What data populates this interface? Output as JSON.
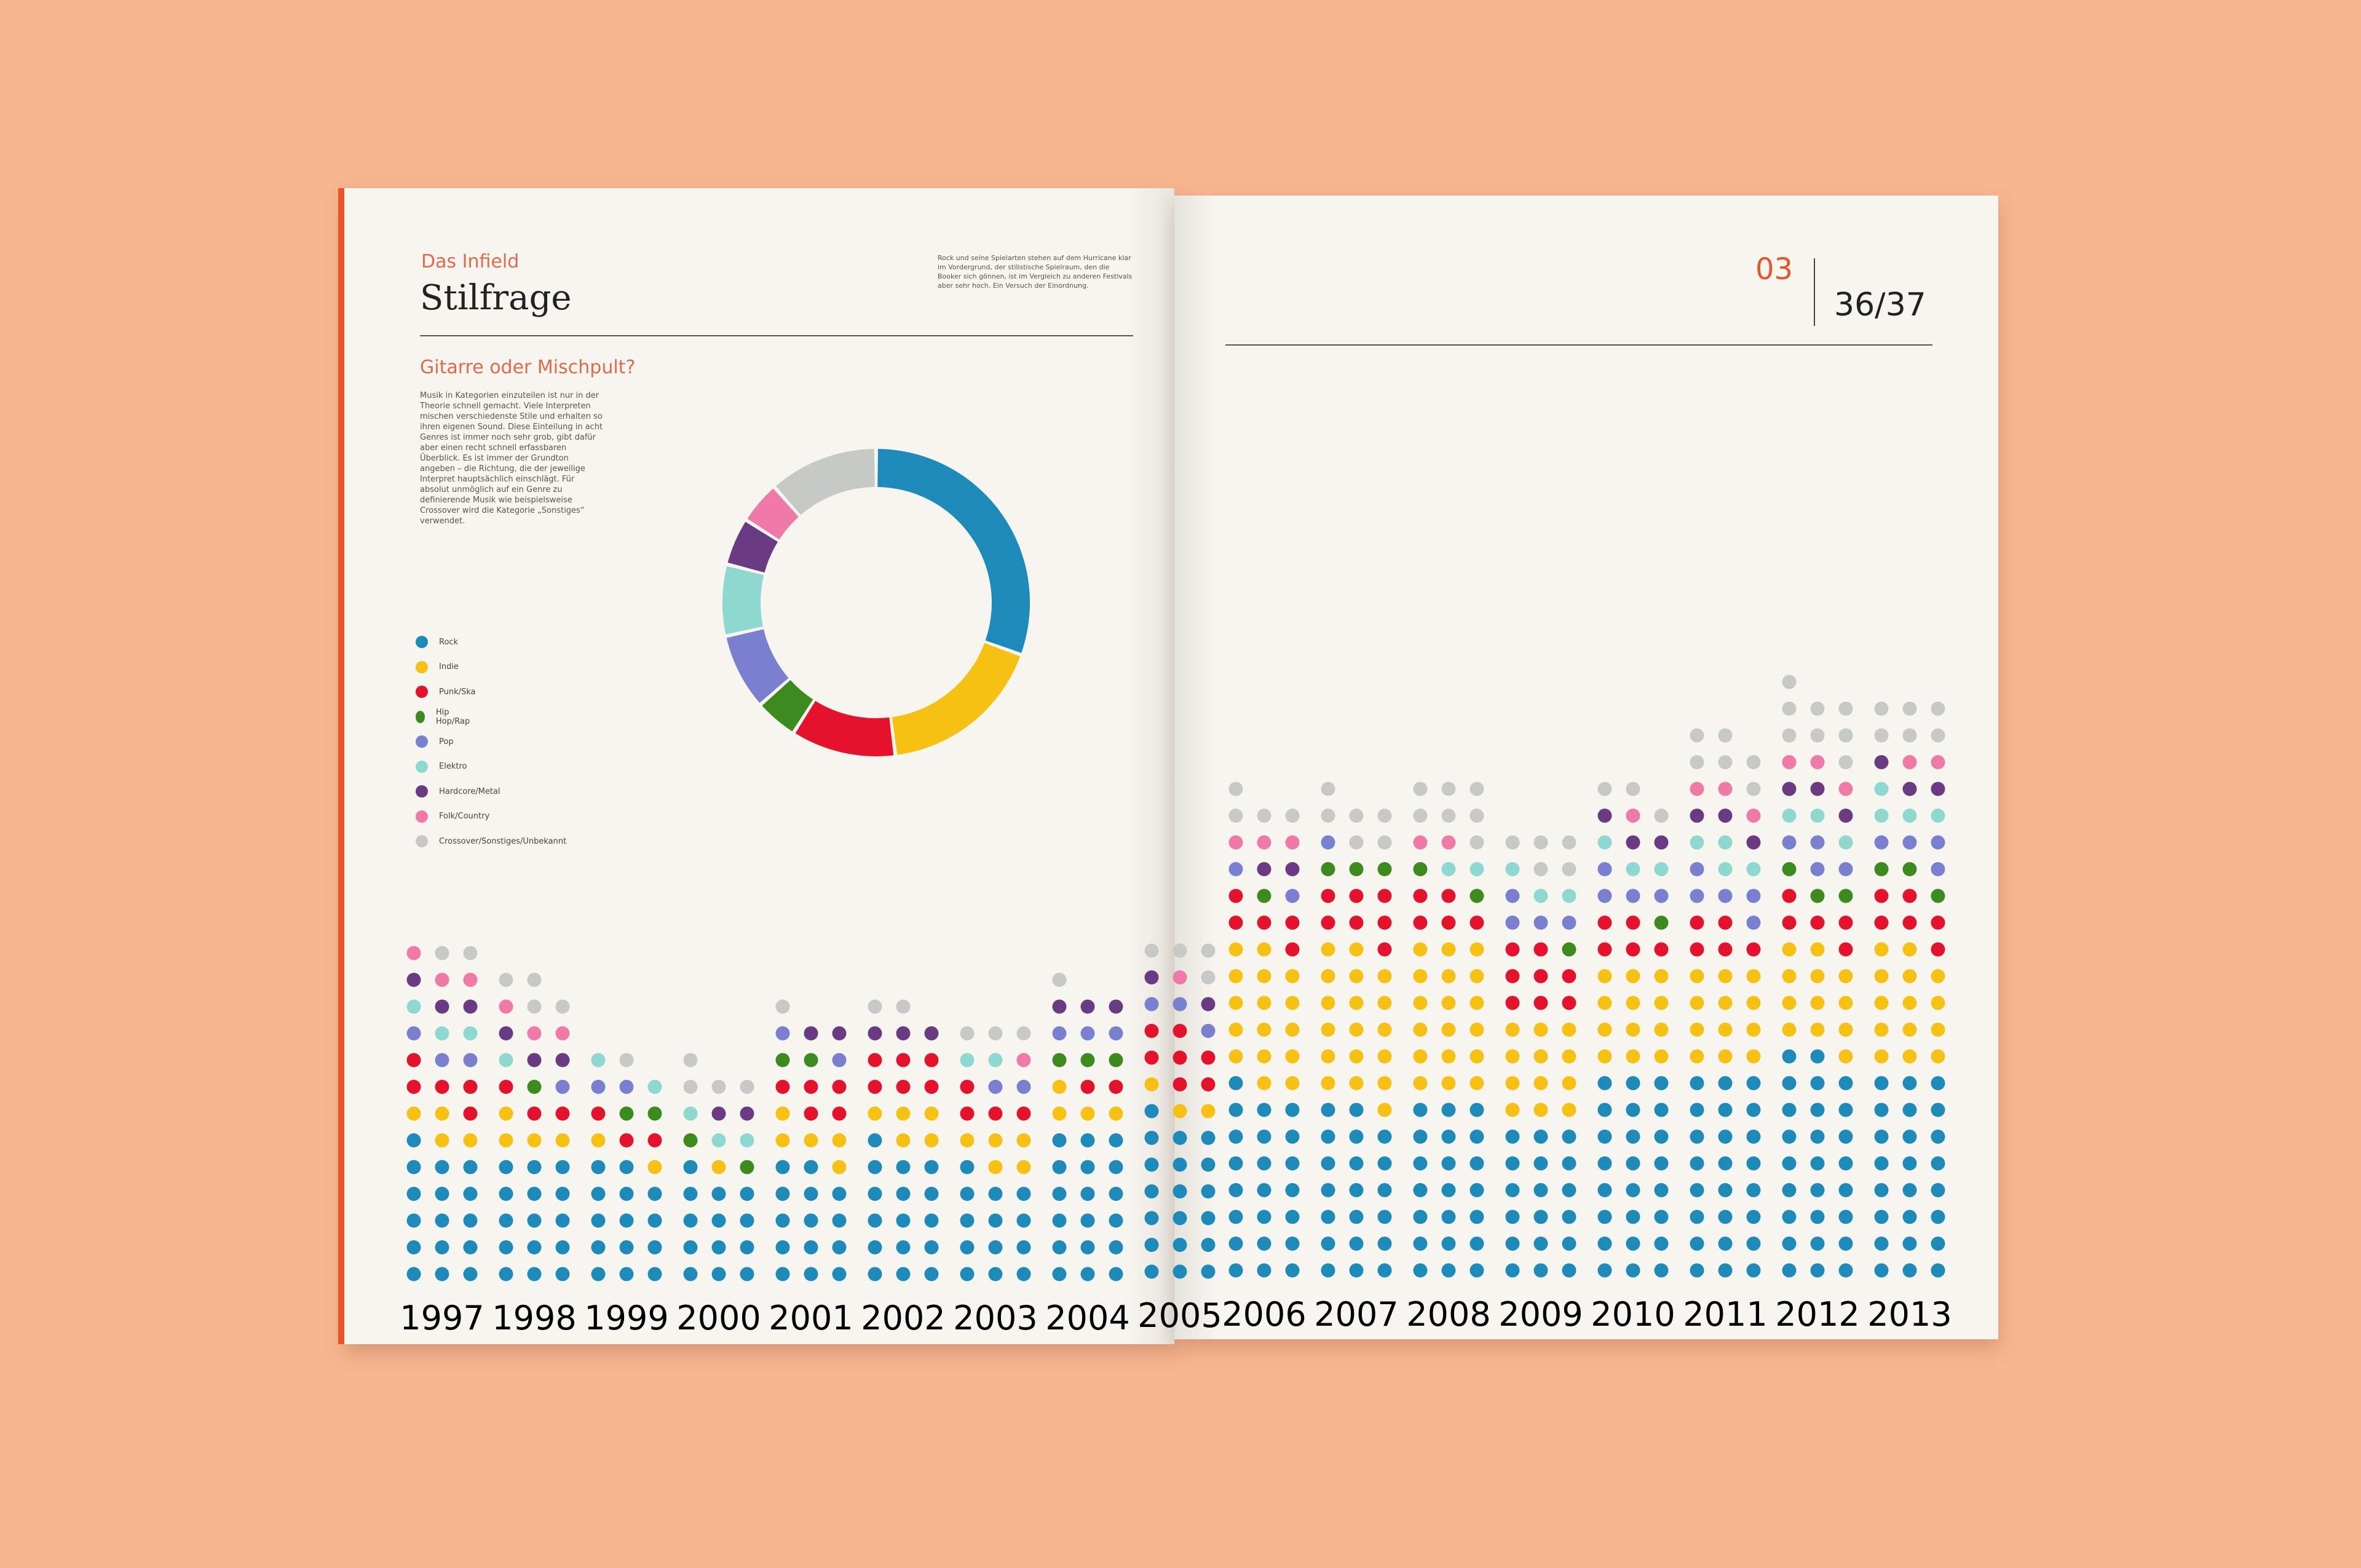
{
  "header": {
    "kicker": "Das Infield",
    "title": "Stilfrage",
    "intro": "Rock und seine Spielarten stehen auf dem Hurricane klar im Vordergrund, der stilistische Spielraum, den die Booker sich gönnen, ist im Vergleich zu anderen Festivals aber sehr hoch. Ein Versuch der Einordnung.",
    "section_number": "03",
    "page_numbers": "36/37"
  },
  "section": {
    "subheading": "Gitarre oder Mischpult?",
    "body": "Musik in Kategorien einzuteilen ist nur in der Theorie schnell gemacht. Viele Interpreten mischen verschiedenste Stile und erhalten so ihren eigenen Sound. Diese Einteilung in acht Genres ist immer noch sehr grob, gibt dafür aber einen recht schnell erfassbaren Überblick. Es ist immer der Grundton angeben – die Richtung, die der jeweilige Interpret hauptsächlich einschlägt. Für absolut unmöglich auf ein Genre zu definierende Musik wie beispielsweise Crossover wird die Kategorie „Sonstiges“ verwendet."
  },
  "chart_data": [
    {
      "type": "pie",
      "categories": [
        "Rock",
        "Indie",
        "Punk/Ska",
        "Hip Hop/Rap",
        "Pop",
        "Elektro",
        "Hardcore/Metal",
        "Folk/Country",
        "Crossover/Sonstiges/Unbekannt"
      ],
      "values": [
        30.5,
        17.5,
        11,
        4.5,
        8,
        7.5,
        5,
        4.5,
        11.5
      ],
      "colors": [
        "#1e8ab9",
        "#f7c114",
        "#e5122e",
        "#3d8a1f",
        "#7b7fcf",
        "#8fd8cf",
        "#6a3a82",
        "#ef79a7",
        "#c7c9c6"
      ],
      "legend_placement": "left"
    },
    {
      "type": "dot-stack",
      "categories": [
        "1997",
        "1998",
        "1999",
        "2000",
        "2001",
        "2002",
        "2003",
        "2004",
        "2005",
        "2006",
        "2007",
        "2008",
        "2009",
        "2010",
        "2011",
        "2012",
        "2013"
      ],
      "genres": [
        "Rock",
        "Indie",
        "Punk/Ska",
        "Hip Hop/Rap",
        "Pop",
        "Elektro",
        "Hardcore/Metal",
        "Folk/Country",
        "Crossover/Sonstiges/Unbekannt"
      ],
      "colors": [
        "#1e8ab9",
        "#f7c114",
        "#e5122e",
        "#3d8a1f",
        "#7b7fcf",
        "#8fd8cf",
        "#6a3a82",
        "#ef79a7",
        "#c7c9c6"
      ],
      "series": [
        {
          "name": "Rock",
          "values": [
            16,
            15,
            14,
            13,
            14,
            16,
            13,
            18,
            19,
            22,
            20,
            21,
            18,
            24,
            24,
            26,
            24
          ]
        },
        {
          "name": "Indie",
          "values": [
            4,
            4,
            2,
            1,
            5,
            5,
            5,
            4,
            3,
            16,
            18,
            18,
            12,
            12,
            12,
            12,
            14
          ]
        },
        {
          "name": "Punk/Ska",
          "values": [
            5,
            3,
            3,
            0,
            5,
            6,
            4,
            2,
            7,
            5,
            7,
            5,
            8,
            5,
            5,
            5,
            6
          ]
        },
        {
          "name": "Hip Hop/Rap",
          "values": [
            0,
            1,
            2,
            2,
            2,
            0,
            0,
            3,
            0,
            1,
            3,
            2,
            1,
            1,
            0,
            3,
            3
          ]
        },
        {
          "name": "Pop",
          "values": [
            3,
            1,
            2,
            0,
            2,
            0,
            2,
            3,
            3,
            2,
            1,
            0,
            4,
            4,
            5,
            4,
            4
          ]
        },
        {
          "name": "Elektro",
          "values": [
            3,
            1,
            2,
            3,
            0,
            0,
            2,
            0,
            0,
            0,
            0,
            2,
            3,
            3,
            4,
            3,
            4
          ]
        },
        {
          "name": "Hardcore/Metal",
          "values": [
            3,
            3,
            0,
            2,
            2,
            3,
            0,
            3,
            2,
            2,
            0,
            0,
            0,
            3,
            3,
            3,
            3
          ]
        },
        {
          "name": "Folk/Country",
          "values": [
            3,
            3,
            0,
            0,
            0,
            0,
            1,
            0,
            1,
            3,
            0,
            2,
            0,
            1,
            3,
            3,
            2
          ]
        },
        {
          "name": "Crossover/Sonstiges/Unbekannt",
          "values": [
            2,
            4,
            1,
            4,
            1,
            2,
            3,
            1,
            4,
            4,
            6,
            7,
            5,
            3,
            6,
            8,
            6
          ]
        }
      ]
    }
  ]
}
